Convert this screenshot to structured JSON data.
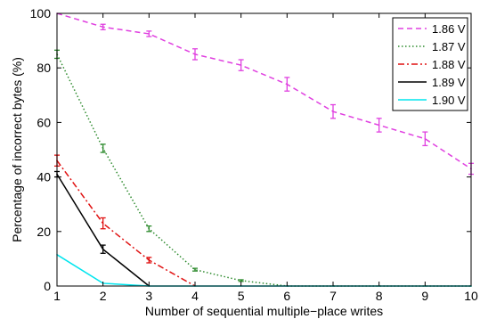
{
  "chart_data": {
    "type": "line",
    "xlabel": "Number of sequential multiple−place writes",
    "ylabel": "Percentage of incorrect bytes (%)",
    "xlim": [
      1,
      10
    ],
    "ylim": [
      0,
      100
    ],
    "x_ticks": [
      1,
      2,
      3,
      4,
      5,
      6,
      7,
      8,
      9,
      10
    ],
    "y_ticks": [
      0,
      20,
      40,
      60,
      80,
      100
    ],
    "grid": false,
    "legend_position": "top-right",
    "series": [
      {
        "name": "1.86 V",
        "color": "#e040e0",
        "dash": "dashed",
        "x": [
          1,
          2,
          3,
          4,
          5,
          6,
          7,
          8,
          9,
          10
        ],
        "y": [
          100,
          95,
          92.5,
          85,
          81,
          74,
          64,
          59,
          54,
          43
        ],
        "err": [
          0,
          1,
          1,
          2,
          2,
          2.5,
          2.5,
          2.5,
          2.5,
          2
        ]
      },
      {
        "name": "1.87 V",
        "color": "#2e8b2e",
        "dash": "dotted",
        "x": [
          1,
          2,
          3,
          4,
          5,
          6,
          7,
          8,
          9,
          10
        ],
        "y": [
          85,
          50.5,
          21,
          6,
          2,
          0,
          0,
          0,
          0,
          0
        ],
        "err": [
          1.5,
          1.5,
          1,
          0.5,
          0.3,
          0,
          0,
          0,
          0,
          0
        ]
      },
      {
        "name": "1.88 V",
        "color": "#e01010",
        "dash": "dashdot",
        "x": [
          1,
          2,
          3,
          4
        ],
        "y": [
          46,
          23,
          9.5,
          0
        ],
        "err": [
          2,
          2,
          1,
          0
        ]
      },
      {
        "name": "1.89 V",
        "color": "#000000",
        "dash": "solid",
        "x": [
          1,
          2,
          3
        ],
        "y": [
          41,
          13.5,
          0
        ],
        "err": [
          1,
          1.5,
          0
        ]
      },
      {
        "name": "1.90 V",
        "color": "#00e5ee",
        "dash": "solid",
        "x": [
          1,
          2,
          3,
          4,
          5,
          6,
          7,
          8,
          9,
          10
        ],
        "y": [
          11.5,
          1,
          0,
          0,
          0,
          0,
          0,
          0,
          0,
          0
        ],
        "err": [
          0,
          0,
          0,
          0,
          0,
          0,
          0,
          0,
          0,
          0
        ]
      }
    ]
  }
}
